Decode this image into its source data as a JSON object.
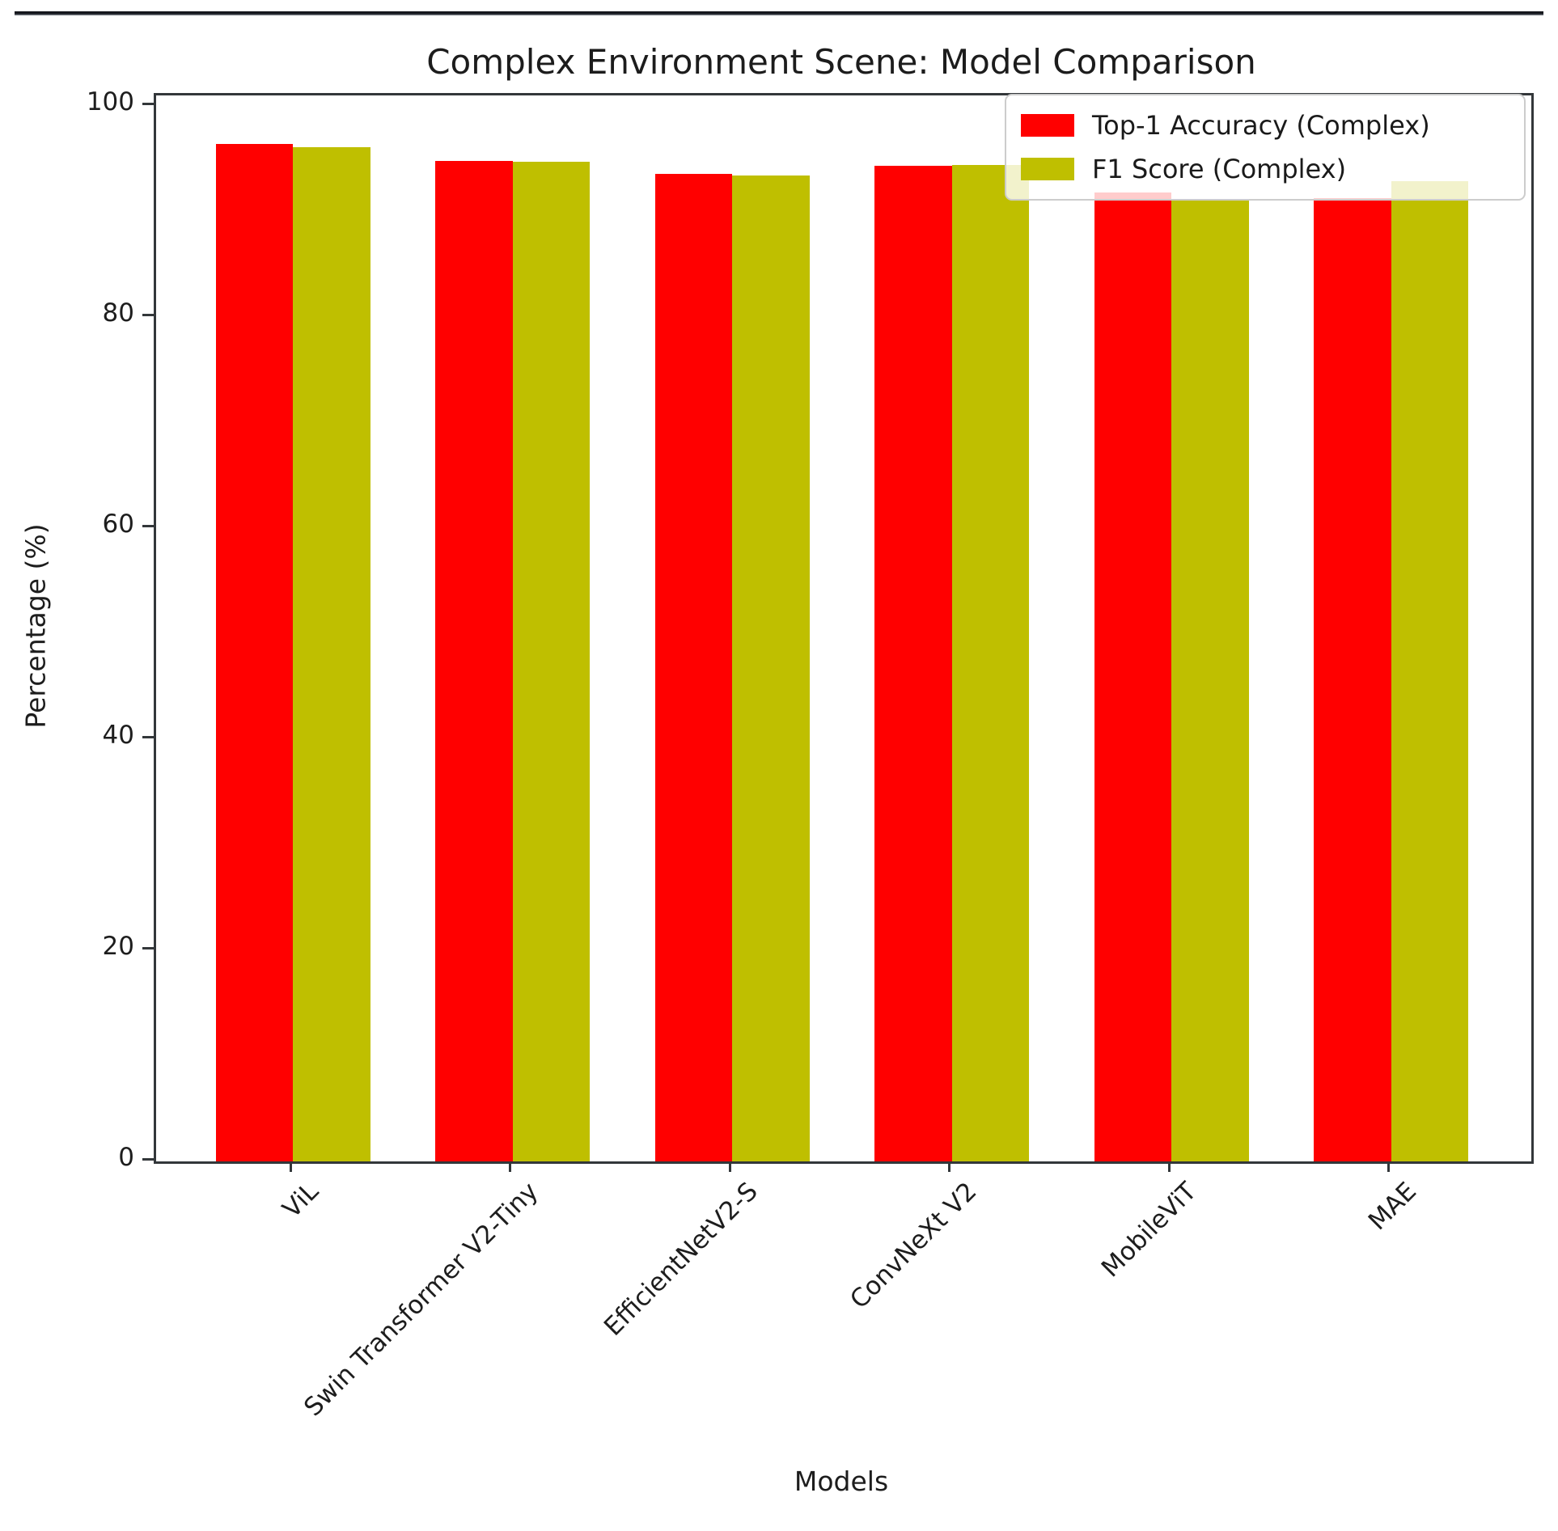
{
  "chart_data": {
    "type": "bar",
    "title": "Complex Environment Scene: Model Comparison",
    "xlabel": "Models",
    "ylabel": "Percentage (%)",
    "categories": [
      "ViL",
      "Swin Transformer V2-Tiny",
      "EfficientNetV2-S",
      "ConvNeXt V2",
      "MobileViT",
      "MAE"
    ],
    "series": [
      {
        "name": "Top-1 Accuracy (Complex)",
        "color": "#ff0000",
        "values": [
          96.4,
          94.8,
          93.6,
          94.3,
          91.8,
          91.3
        ]
      },
      {
        "name": "F1 Score (Complex)",
        "color": "#bfbf00",
        "values": [
          96.1,
          94.7,
          93.4,
          94.4,
          91.2,
          92.9
        ]
      }
    ],
    "ylim": [
      0,
      101
    ],
    "yticks": [
      0,
      20,
      40,
      60,
      80,
      100
    ],
    "legend_position": "upper right",
    "grid": false
  }
}
